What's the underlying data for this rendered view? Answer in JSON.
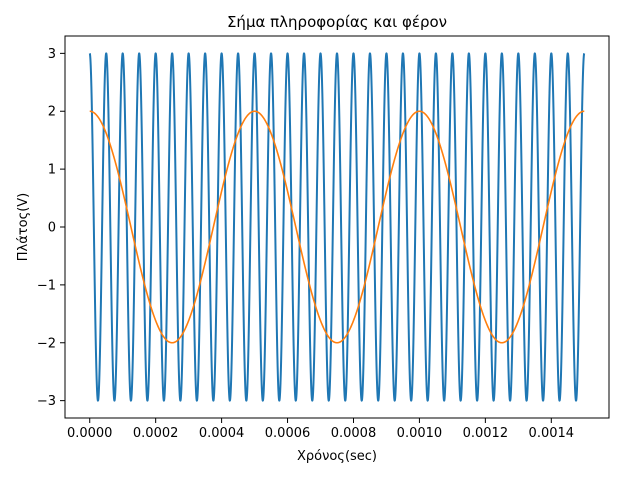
{
  "chart_data": {
    "type": "line",
    "title": "Σήμα πληροφορίας και φέρον",
    "xlabel": "Χρόνος(sec)",
    "ylabel": "Πλάτος(V)",
    "xlim": [
      -7.5e-05,
      0.001575
    ],
    "ylim": [
      -3.3,
      3.3
    ],
    "xticks": [
      0.0,
      0.0002,
      0.0004,
      0.0006,
      0.0008,
      0.001,
      0.0012,
      0.0014
    ],
    "xtick_labels": [
      "0.0000",
      "0.0002",
      "0.0004",
      "0.0006",
      "0.0008",
      "0.0010",
      "0.0012",
      "0.0014"
    ],
    "yticks": [
      -3,
      -2,
      -1,
      0,
      1,
      2,
      3
    ],
    "ytick_labels": [
      "−3",
      "−2",
      "−1",
      "0",
      "1",
      "2",
      "3"
    ],
    "grid": false,
    "series": [
      {
        "color": "#1f77b4",
        "amplitude": 3,
        "frequency_hz": 20000,
        "x_start": 0.0,
        "x_end": 0.0015
      },
      {
        "color": "#ff7f0e",
        "amplitude": 2,
        "frequency_hz": 2000,
        "x_start": 0.0,
        "x_end": 0.0015
      }
    ]
  }
}
